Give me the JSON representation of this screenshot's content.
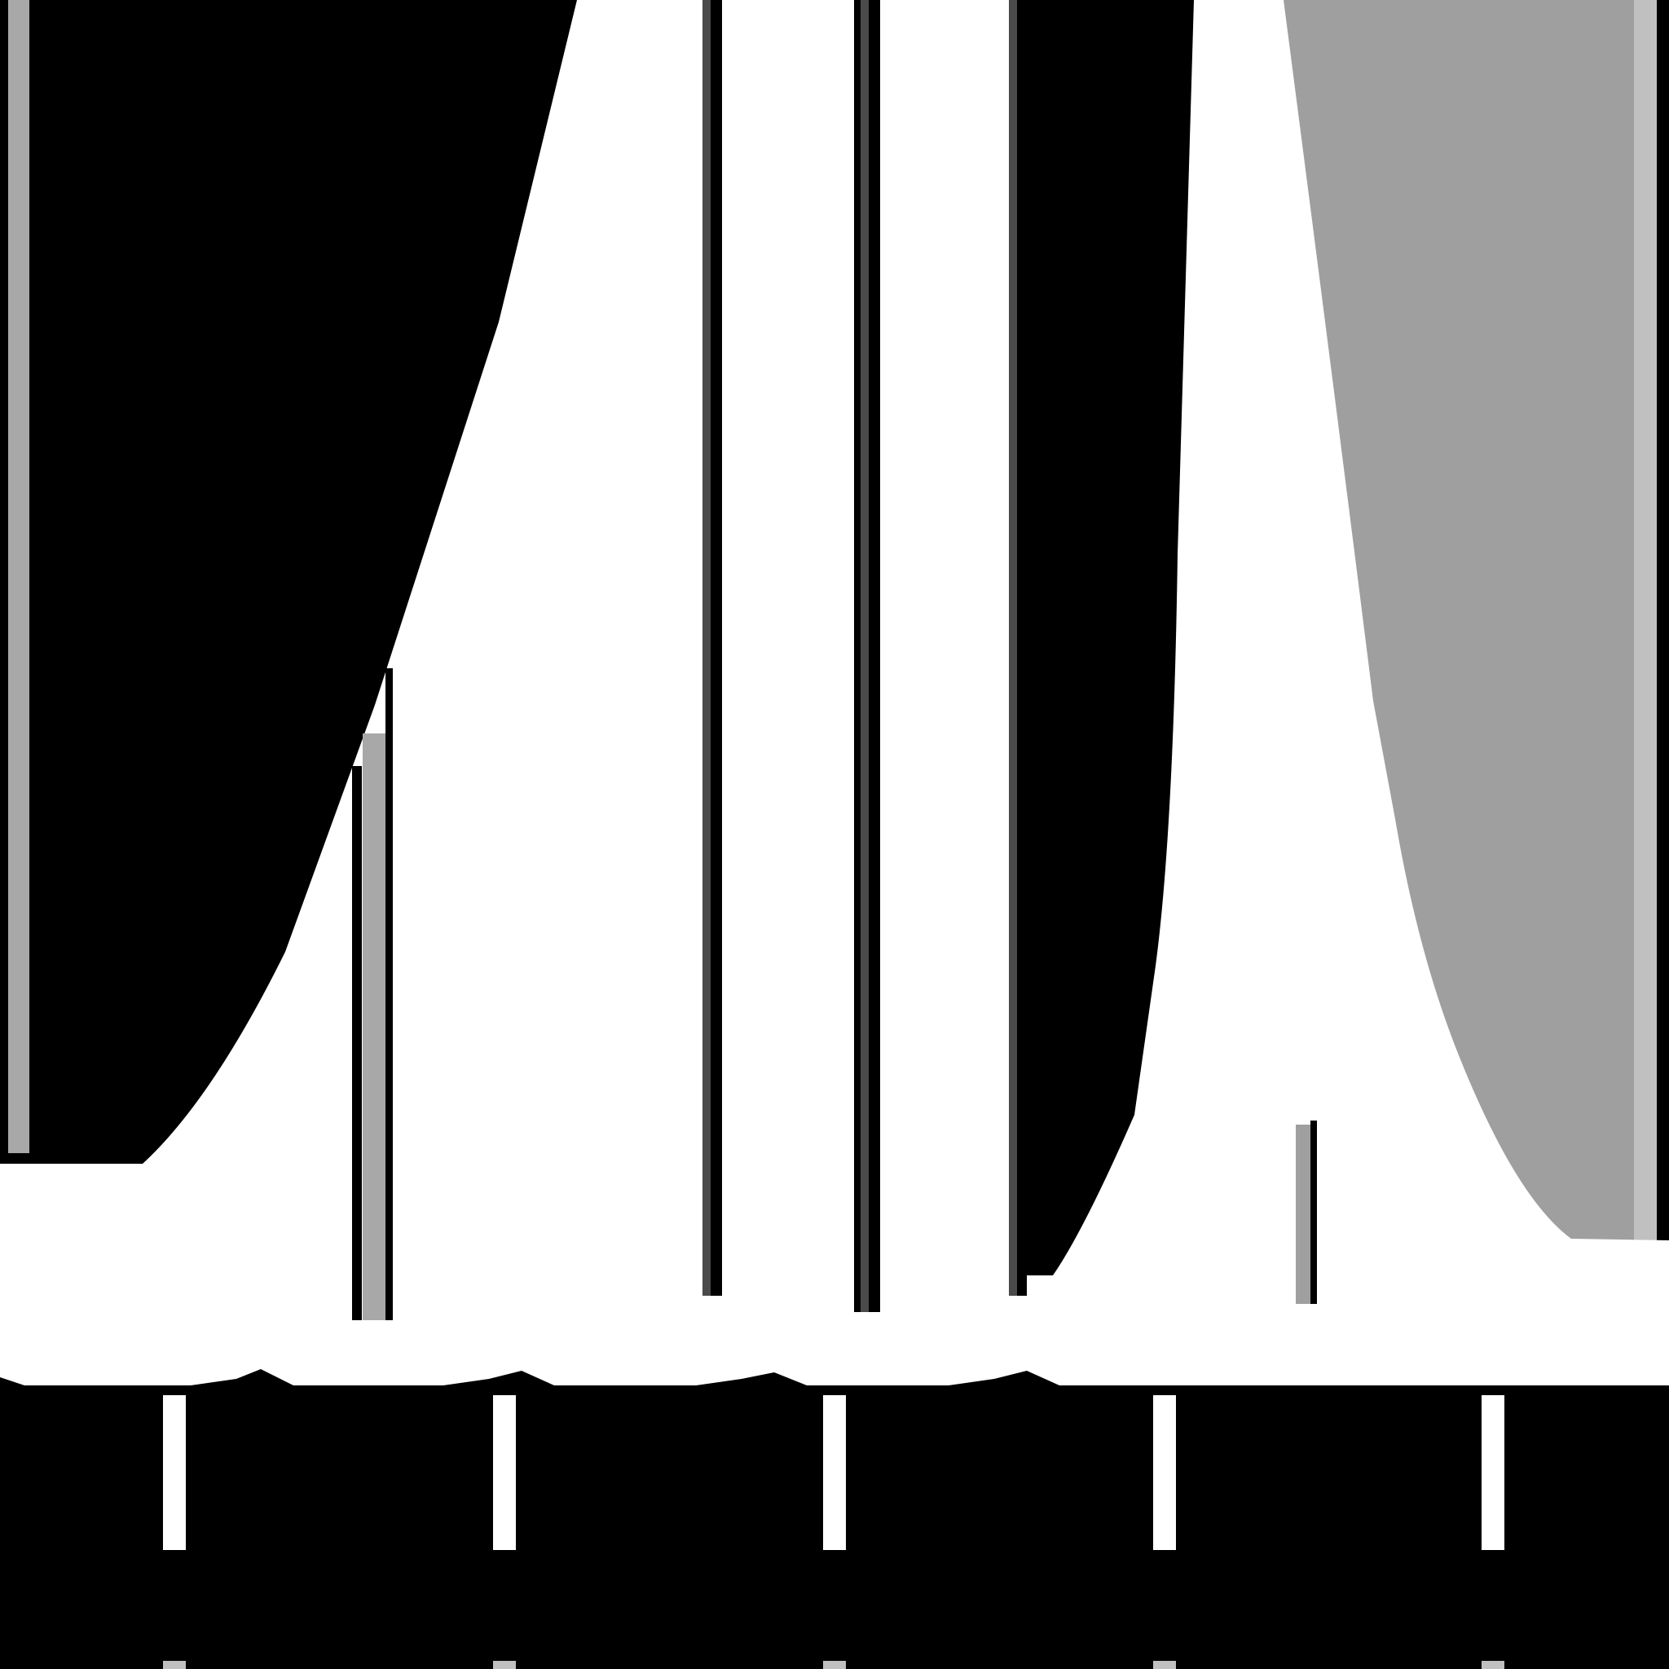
{
  "palette": {
    "background": "#000000",
    "white": "#ffffff",
    "light_gray": "#c0c0c0",
    "mid_gray": "#a8a8a8",
    "gray": "#9f9f9f",
    "dark_gray": "#4a4a4a"
  },
  "scene": {
    "peak_shapes": 2,
    "vertical_bars": 7,
    "bottom_tick_marks": 5
  }
}
